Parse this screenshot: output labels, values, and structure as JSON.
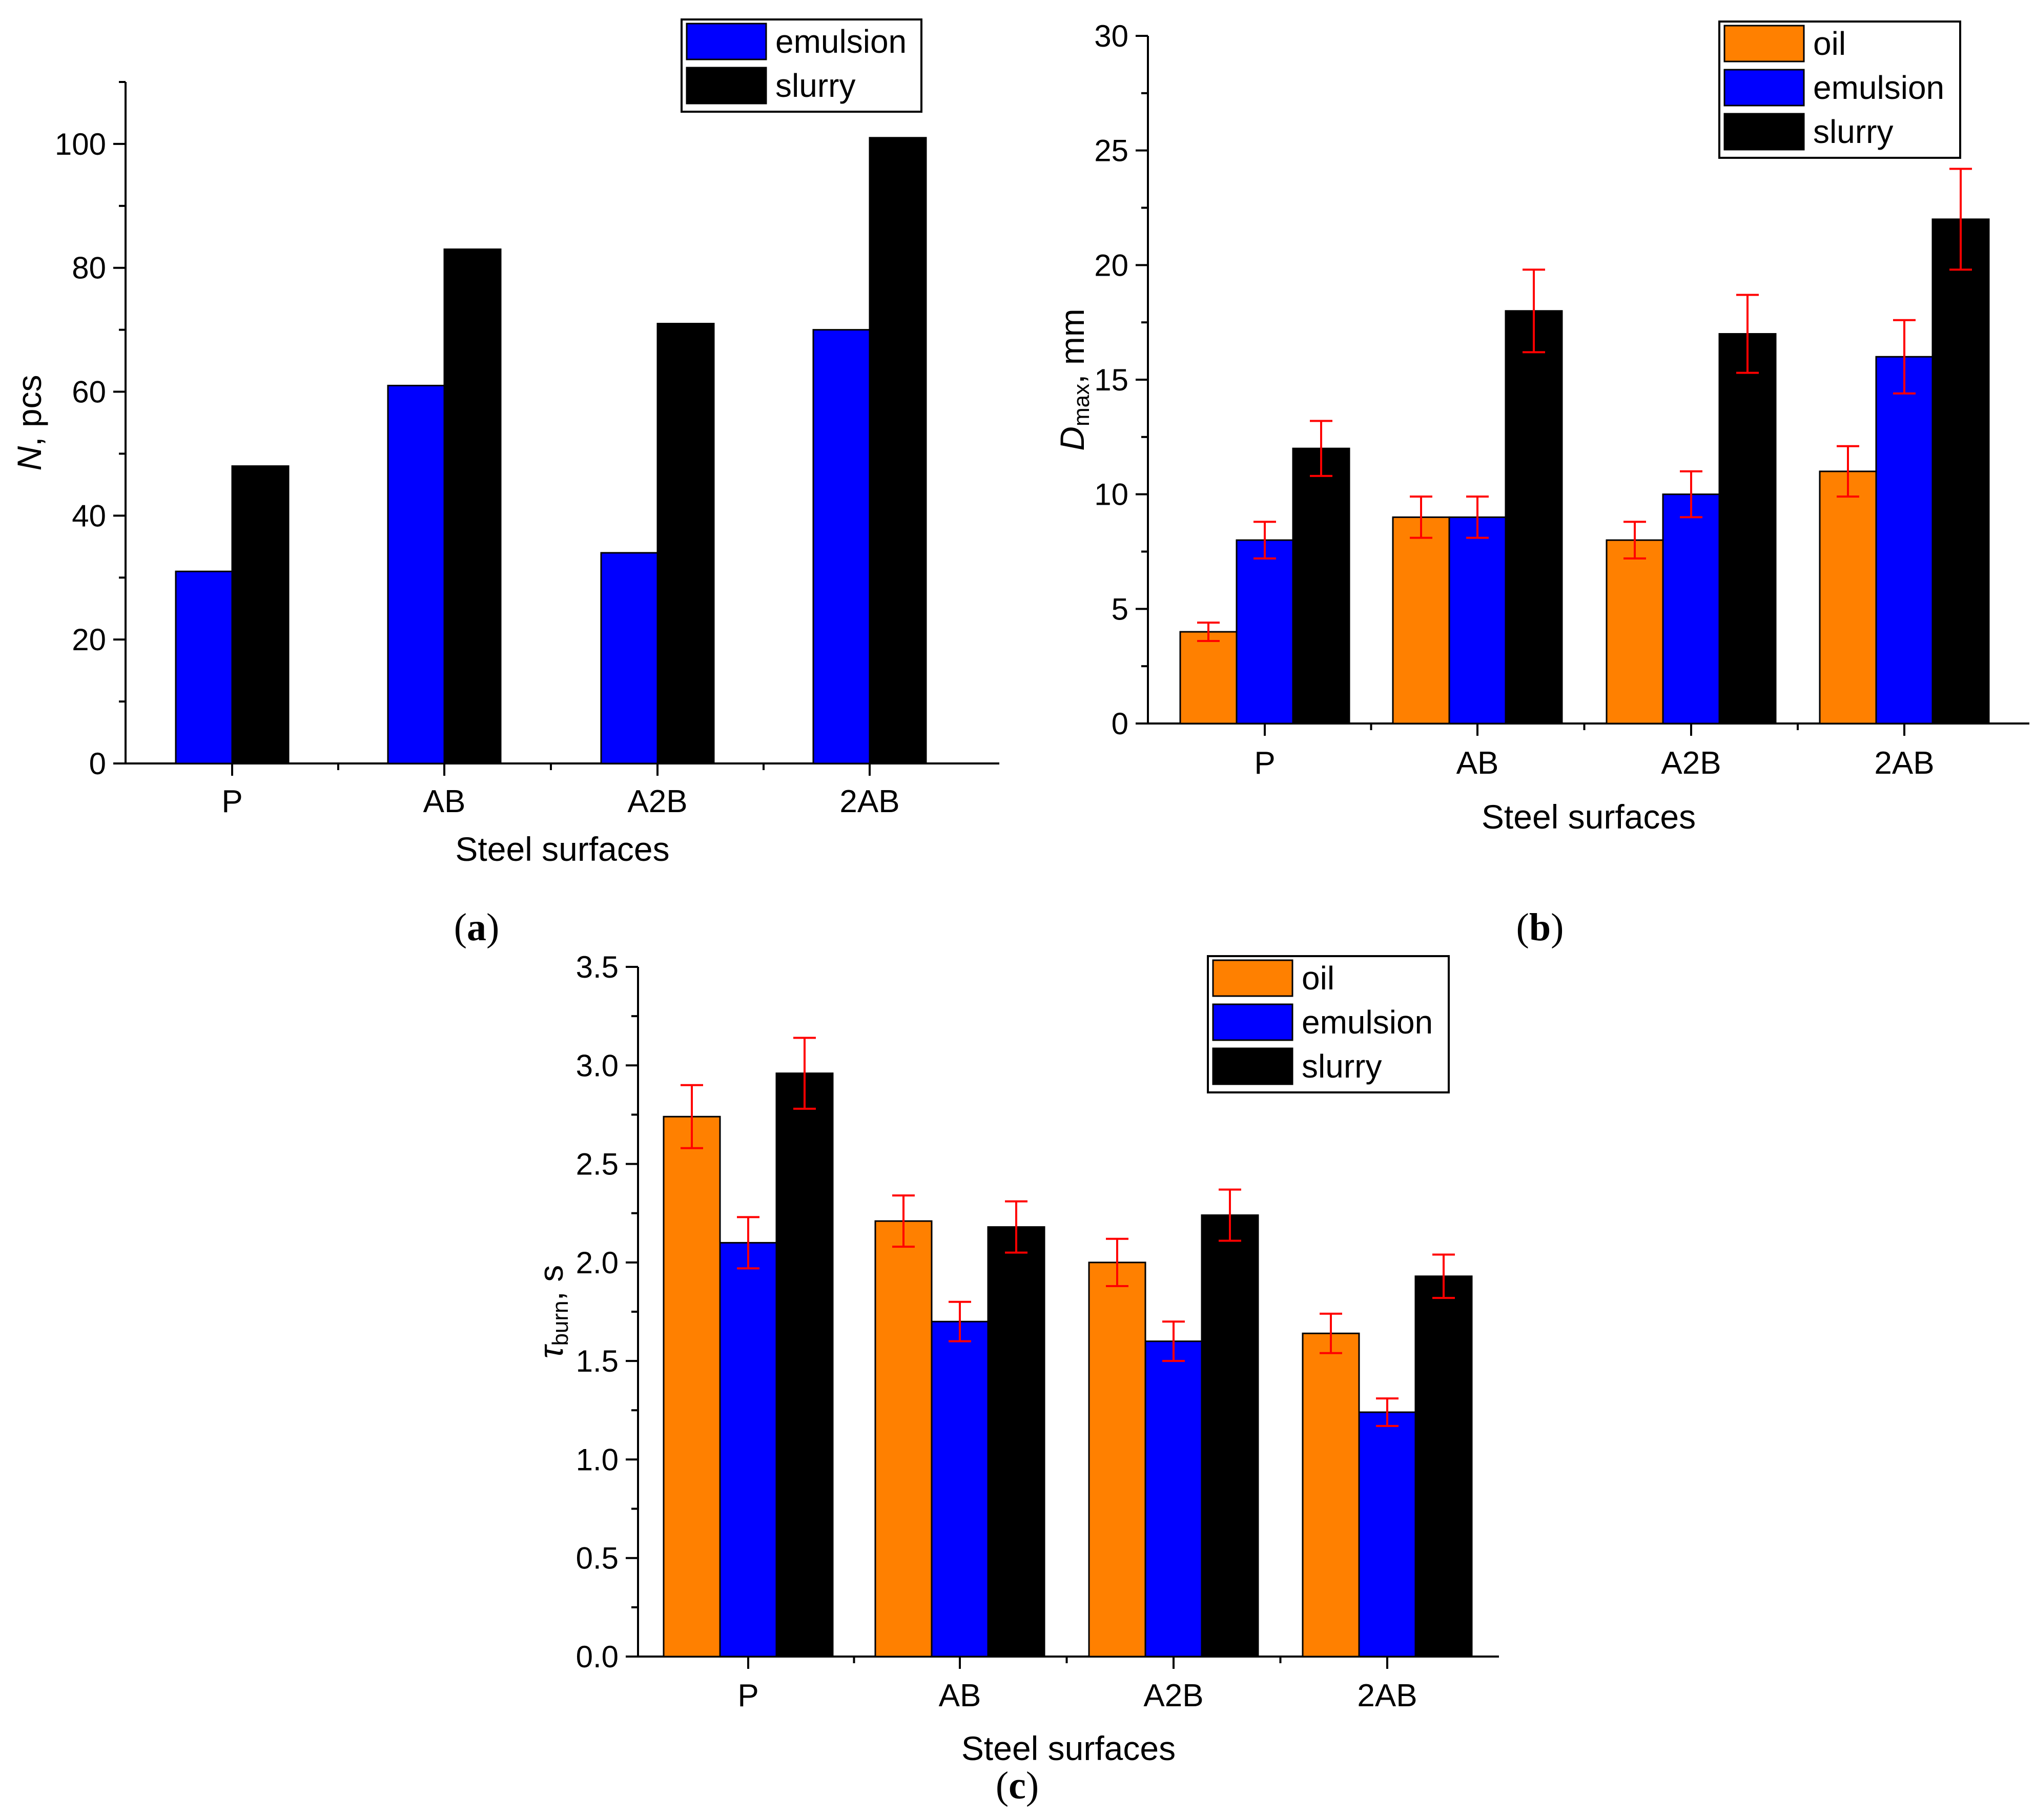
{
  "colors": {
    "oil": "#ff8000",
    "emulsion": "#0000ff",
    "slurry": "#000000",
    "error_bar": "#ff0000"
  },
  "chart_data": [
    {
      "panel": "a",
      "type": "bar",
      "xlabel": "Steel surfaces",
      "ylabel_main": "N",
      "ylabel_rest": ", pcs",
      "categories": [
        "P",
        "AB",
        "A2B",
        "2AB"
      ],
      "ylim": [
        0,
        110
      ],
      "yticks": [
        0,
        20,
        40,
        60,
        80,
        100
      ],
      "legend_position": "top-right",
      "series": [
        {
          "name": "emulsion",
          "color_key": "emulsion",
          "values": [
            31,
            61,
            34,
            70
          ]
        },
        {
          "name": "slurry",
          "color_key": "slurry",
          "values": [
            48,
            83,
            71,
            101
          ]
        }
      ]
    },
    {
      "panel": "b",
      "type": "bar",
      "xlabel": "Steel surfaces",
      "ylabel_main": "D",
      "ylabel_sub": "max",
      "ylabel_rest": ", mm",
      "categories": [
        "P",
        "AB",
        "A2B",
        "2AB"
      ],
      "ylim": [
        0,
        30
      ],
      "yticks": [
        0,
        5,
        10,
        15,
        20,
        25,
        30
      ],
      "legend_position": "top-right",
      "series": [
        {
          "name": "oil",
          "color_key": "oil",
          "values": [
            4,
            9,
            8,
            11
          ],
          "errors": [
            0.4,
            0.9,
            0.8,
            1.1
          ]
        },
        {
          "name": "emulsion",
          "color_key": "emulsion",
          "values": [
            8,
            9,
            10,
            16
          ],
          "errors": [
            0.8,
            0.9,
            1.0,
            1.6
          ]
        },
        {
          "name": "slurry",
          "color_key": "slurry",
          "values": [
            12,
            18,
            17,
            22
          ],
          "errors": [
            1.2,
            1.8,
            1.7,
            2.2
          ]
        }
      ]
    },
    {
      "panel": "c",
      "type": "bar",
      "xlabel": "Steel surfaces",
      "ylabel_main": "τ",
      "ylabel_sub": "burn",
      "ylabel_rest": ", s",
      "categories": [
        "P",
        "AB",
        "A2B",
        "2AB"
      ],
      "ylim": [
        0,
        3.5
      ],
      "yticks": [
        "0.0",
        "0.5",
        "1.0",
        "1.5",
        "2.0",
        "2.5",
        "3.0",
        "3.5"
      ],
      "legend_position": "top-right",
      "series": [
        {
          "name": "oil",
          "color_key": "oil",
          "values": [
            2.74,
            2.21,
            2.0,
            1.64
          ],
          "errors": [
            0.16,
            0.13,
            0.12,
            0.1
          ]
        },
        {
          "name": "emulsion",
          "color_key": "emulsion",
          "values": [
            2.1,
            1.7,
            1.6,
            1.24
          ],
          "errors": [
            0.13,
            0.1,
            0.1,
            0.07
          ]
        },
        {
          "name": "slurry",
          "color_key": "slurry",
          "values": [
            2.96,
            2.18,
            2.24,
            1.93
          ],
          "errors": [
            0.18,
            0.13,
            0.13,
            0.11
          ]
        }
      ]
    }
  ],
  "panel_labels": {
    "a": "a",
    "b": "b",
    "c": "c"
  }
}
